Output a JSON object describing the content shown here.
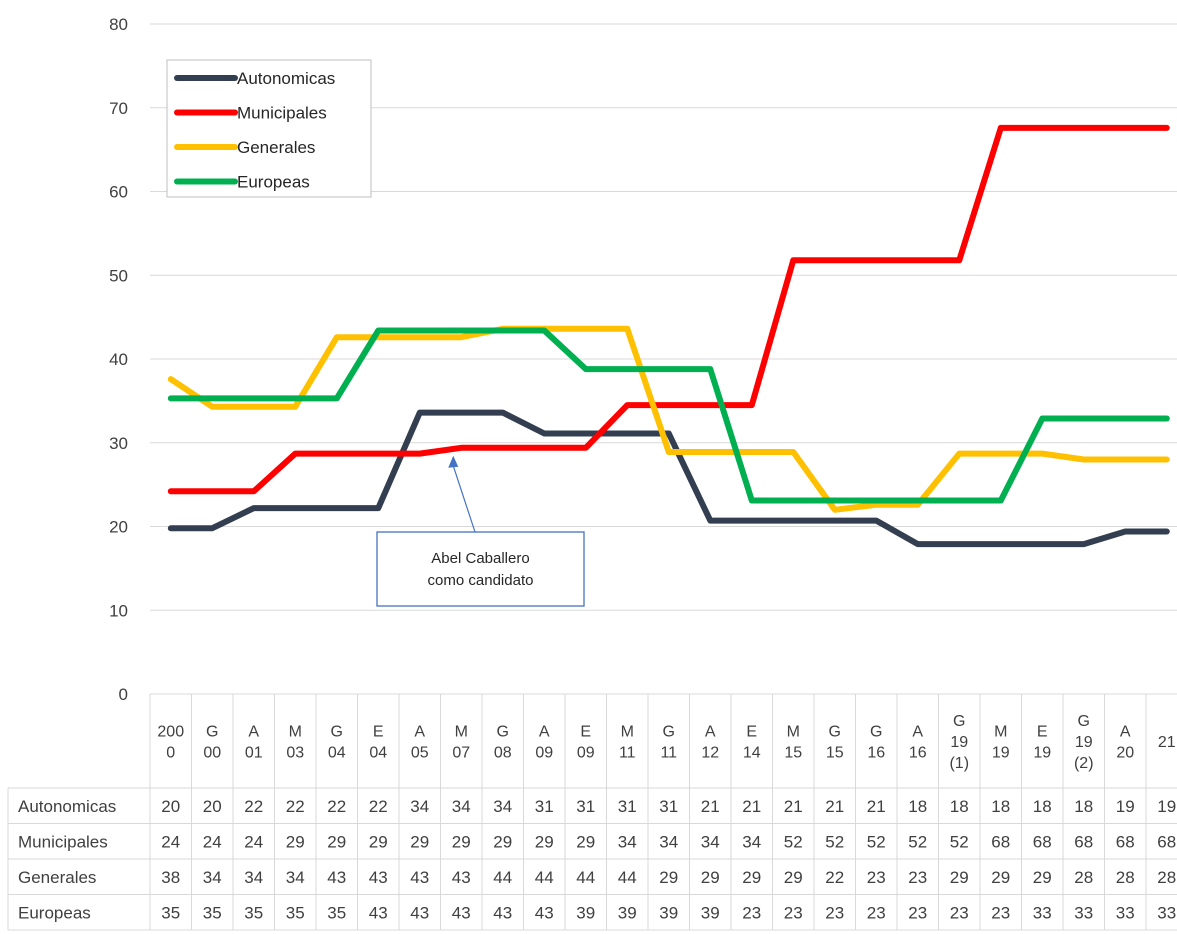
{
  "chart_data": {
    "type": "line",
    "y_ticks": [
      "0",
      "10",
      "20",
      "30",
      "40",
      "50",
      "60",
      "70",
      "80"
    ],
    "ylim": [
      0,
      80
    ],
    "grid": true,
    "legend_position": "top-left",
    "categories": [
      [
        "200",
        "0"
      ],
      [
        "G",
        "00"
      ],
      [
        "A",
        "01"
      ],
      [
        "M",
        "03"
      ],
      [
        "G",
        "04"
      ],
      [
        "E",
        "04"
      ],
      [
        "A",
        "05"
      ],
      [
        "M",
        "07"
      ],
      [
        "G",
        "08"
      ],
      [
        "A",
        "09"
      ],
      [
        "E",
        "09"
      ],
      [
        "M",
        "11"
      ],
      [
        "G",
        "11"
      ],
      [
        "A",
        "12"
      ],
      [
        "E",
        "14"
      ],
      [
        "M",
        "15"
      ],
      [
        "G",
        "15"
      ],
      [
        "G",
        "16"
      ],
      [
        "A",
        "16"
      ],
      [
        "G",
        "19",
        "(1)"
      ],
      [
        "M",
        "19"
      ],
      [
        "E",
        "19"
      ],
      [
        "G",
        "19",
        "(2)"
      ],
      [
        "A",
        "20"
      ],
      [
        "21"
      ]
    ],
    "series": [
      {
        "name": "Autonomicas",
        "color": "#333f50",
        "values": [
          19.8,
          19.8,
          22.2,
          22.2,
          22.2,
          22.2,
          33.6,
          33.6,
          33.6,
          31.1,
          31.1,
          31.1,
          31.1,
          20.7,
          20.7,
          20.7,
          20.7,
          20.7,
          17.9,
          17.9,
          17.9,
          17.9,
          17.9,
          19.4,
          19.4
        ],
        "labels": [
          "20",
          "20",
          "22",
          "22",
          "22",
          "22",
          "34",
          "34",
          "34",
          "31",
          "31",
          "31",
          "31",
          "21",
          "21",
          "21",
          "21",
          "21",
          "18",
          "18",
          "18",
          "18",
          "18",
          "19",
          "19"
        ]
      },
      {
        "name": "Municipales",
        "color": "#ff0000",
        "values": [
          24.2,
          24.2,
          24.2,
          28.7,
          28.7,
          28.7,
          28.7,
          29.4,
          29.4,
          29.4,
          29.4,
          34.5,
          34.5,
          34.5,
          34.5,
          51.8,
          51.8,
          51.8,
          51.8,
          51.8,
          67.6,
          67.6,
          67.6,
          67.6,
          67.6
        ],
        "labels": [
          "24",
          "24",
          "24",
          "29",
          "29",
          "29",
          "29",
          "29",
          "29",
          "29",
          "29",
          "34",
          "34",
          "34",
          "34",
          "52",
          "52",
          "52",
          "52",
          "52",
          "68",
          "68",
          "68",
          "68",
          "68"
        ]
      },
      {
        "name": "Generales",
        "color": "#ffc000",
        "values": [
          37.6,
          34.3,
          34.3,
          34.3,
          42.6,
          42.6,
          42.6,
          42.6,
          43.6,
          43.6,
          43.6,
          43.6,
          28.9,
          28.9,
          28.9,
          28.9,
          22.0,
          22.6,
          22.6,
          28.7,
          28.7,
          28.7,
          28.0,
          28.0,
          28.0
        ],
        "labels": [
          "38",
          "34",
          "34",
          "34",
          "43",
          "43",
          "43",
          "43",
          "44",
          "44",
          "44",
          "44",
          "29",
          "29",
          "29",
          "29",
          "22",
          "23",
          "23",
          "29",
          "29",
          "29",
          "28",
          "28",
          "28"
        ]
      },
      {
        "name": "Europeas",
        "color": "#00b050",
        "values": [
          35.3,
          35.3,
          35.3,
          35.3,
          35.3,
          43.4,
          43.4,
          43.4,
          43.4,
          43.4,
          38.8,
          38.8,
          38.8,
          38.8,
          23.1,
          23.1,
          23.1,
          23.1,
          23.1,
          23.1,
          23.1,
          32.9,
          32.9,
          32.9,
          32.9
        ],
        "labels": [
          "35",
          "35",
          "35",
          "35",
          "35",
          "43",
          "43",
          "43",
          "43",
          "43",
          "39",
          "39",
          "39",
          "39",
          "23",
          "23",
          "23",
          "23",
          "23",
          "23",
          "23",
          "33",
          "33",
          "33",
          "33"
        ]
      }
    ],
    "annotation": {
      "lines": [
        "Abel Caballero",
        "como candidato"
      ],
      "target_index": 7,
      "target_value": 29.4
    }
  }
}
